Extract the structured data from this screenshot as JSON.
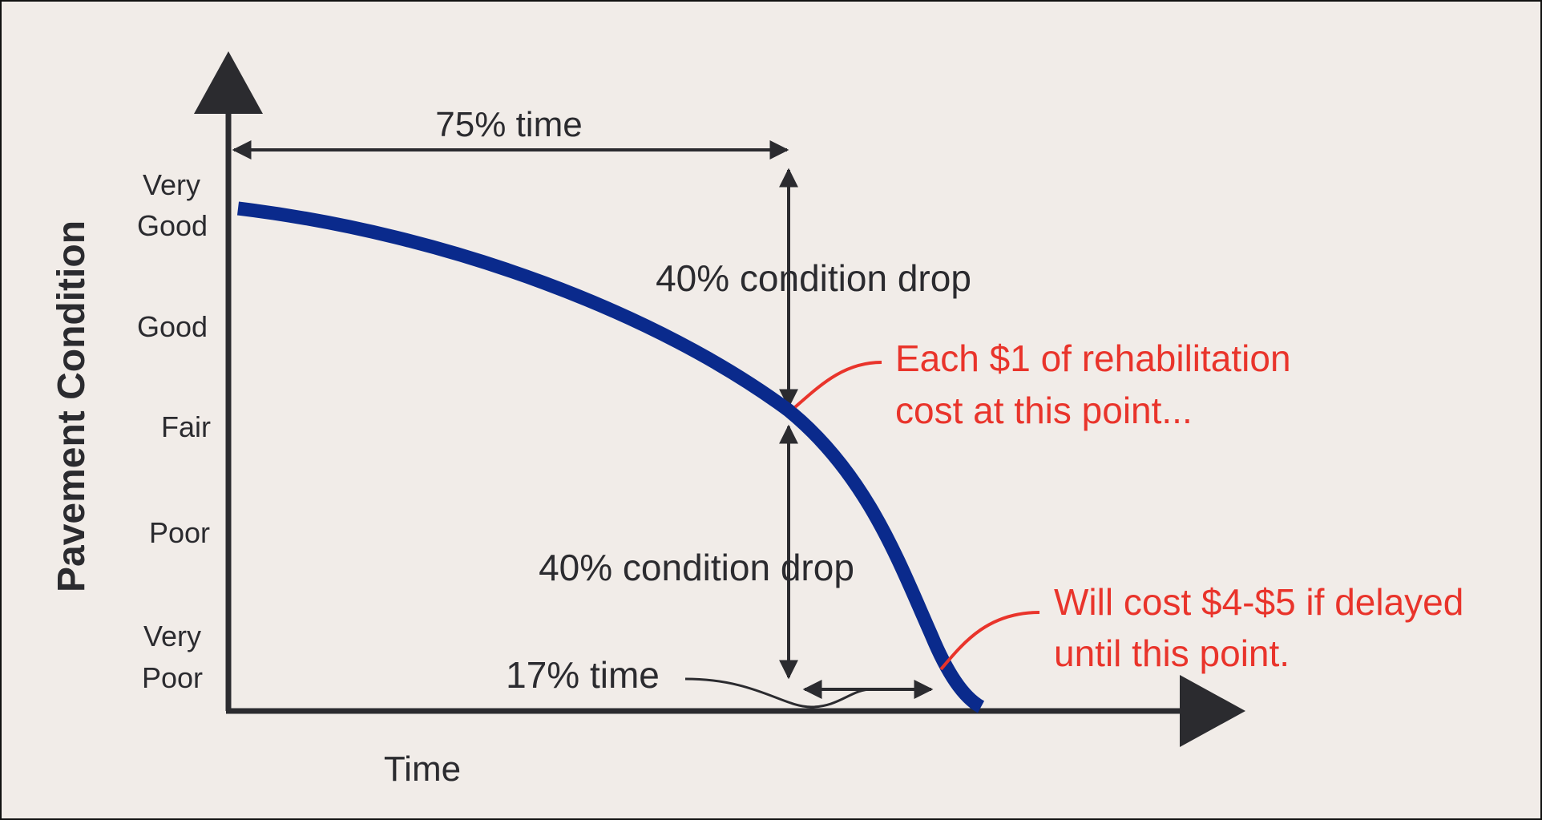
{
  "y_axis": {
    "title": "Pavement Condition",
    "levels": [
      {
        "lines": [
          "Very",
          "Good"
        ]
      },
      {
        "lines": [
          "Good"
        ]
      },
      {
        "lines": [
          "Fair"
        ]
      },
      {
        "lines": [
          "Poor"
        ]
      },
      {
        "lines": [
          "Very",
          "Poor"
        ]
      }
    ]
  },
  "x_axis": {
    "title": "Time"
  },
  "annotations": {
    "time_75": "75% time",
    "drop_upper": "40% condition drop",
    "drop_lower": "40% condition drop",
    "time_17": "17% time",
    "callout_upper": [
      "Each $1 of rehabilitation",
      "cost at this point..."
    ],
    "callout_lower": [
      "Will cost $4-$5 if delayed",
      "until this point."
    ]
  },
  "colors": {
    "curve": "#0a2a8c",
    "ink": "#2b2b2f",
    "callout": "#e9342b",
    "background": "#f1ece8"
  }
}
